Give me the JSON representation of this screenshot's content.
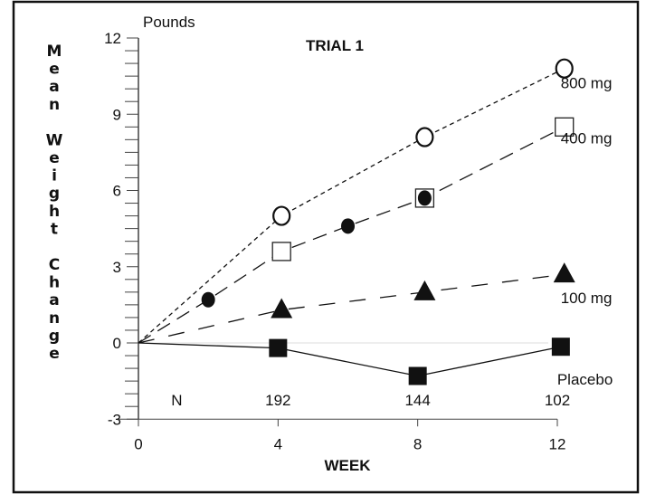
{
  "chart_data": {
    "type": "line",
    "title": "TRIAL 1",
    "xlabel": "WEEK",
    "ylabel": "Mean Weight Change",
    "yunit": "Pounds",
    "xlim": [
      0,
      12
    ],
    "ylim": [
      -3,
      12
    ],
    "xticks": [
      "0",
      "4",
      "8",
      "12"
    ],
    "yticks": [
      "-3",
      "0",
      "3",
      "6",
      "9",
      "12"
    ],
    "grid": false,
    "n_label": "N",
    "n_values": [
      {
        "week": 4,
        "label": "192"
      },
      {
        "week": 8,
        "label": "144"
      },
      {
        "week": 12,
        "label": "102"
      }
    ],
    "series": [
      {
        "name": "800 mg",
        "marker": "open-circle",
        "line": "short-dash",
        "points": [
          [
            0,
            0
          ],
          [
            4.1,
            5.0
          ],
          [
            8.2,
            8.1
          ],
          [
            12.2,
            10.8
          ]
        ],
        "marker_from": 1
      },
      {
        "name": "400 mg",
        "marker": "open-square",
        "line": "long-dash",
        "points": [
          [
            0,
            0
          ],
          [
            2,
            1.7
          ],
          [
            4.1,
            3.6
          ],
          [
            6,
            4.6
          ],
          [
            8.2,
            5.7
          ],
          [
            12.2,
            8.5
          ]
        ],
        "markers": [
          "none",
          "filled-circle",
          "open-square",
          "filled-circle",
          "square-with-circle",
          "open-square"
        ]
      },
      {
        "name": "100 mg",
        "marker": "filled-triangle",
        "line": "long-gap-dash",
        "points": [
          [
            0,
            0
          ],
          [
            4.1,
            1.3
          ],
          [
            8.2,
            2.0
          ],
          [
            12.2,
            2.7
          ]
        ],
        "marker_from": 1
      },
      {
        "name": "Placebo",
        "marker": "filled-square",
        "line": "solid",
        "points": [
          [
            0,
            0
          ],
          [
            4,
            -0.2
          ],
          [
            8,
            -1.3
          ],
          [
            12.1,
            -0.15
          ]
        ],
        "marker_from": 1
      }
    ]
  }
}
